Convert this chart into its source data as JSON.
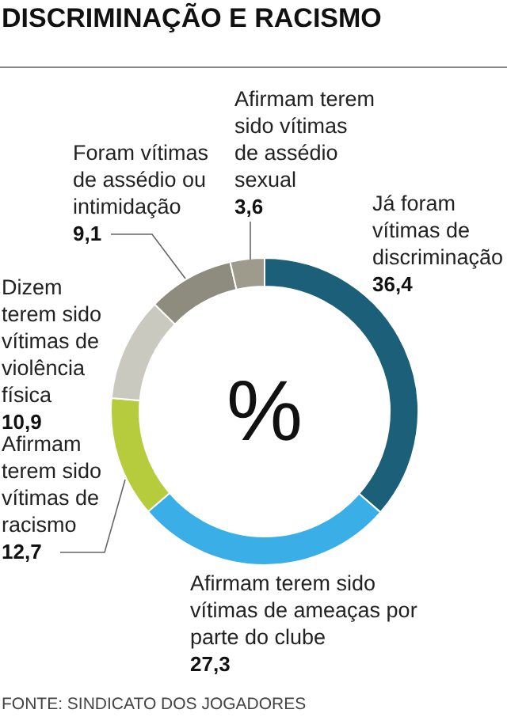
{
  "chart_data": {
    "type": "donut",
    "title": "DISCRIMINAÇÃO E RACISMO",
    "categories": [
      "Já foram vítimas de discriminação",
      "Afirmam terem sido vítimas de ameaças por parte do clube",
      "Afirmam terem sido vítimas de racismo",
      "Dizem terem sido vítimas de violência física",
      "Foram vítimas de assédio ou intimidação",
      "Afirmam terem sido vítimas de assédio sexual"
    ],
    "values": [
      36.4,
      27.3,
      12.7,
      10.9,
      9.1,
      3.6
    ],
    "value_labels": [
      "36,4",
      "27,3",
      "12,7",
      "10,9",
      "9,1",
      "3,6"
    ],
    "colors": [
      "#1b5f78",
      "#3aaee6",
      "#b6cc3c",
      "#cac9bf",
      "#8e8b7f",
      "#9e9a8c"
    ],
    "annotations": [
      "%",
      "FONTE: SINDICATO DOS JOGADORES"
    ]
  }
}
